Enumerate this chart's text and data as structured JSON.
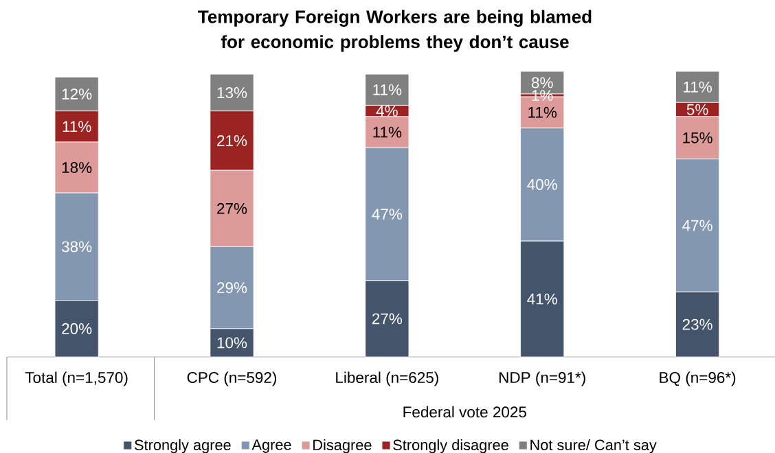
{
  "chart_data": {
    "type": "bar",
    "stacked": true,
    "title": "Temporary Foreign Workers are being blamed for economic problems they don’t cause",
    "categories": [
      "Total (n=1,570)",
      "CPC (n=592)",
      "Liberal (n=625)",
      "NDP (n=91*)",
      "BQ (n=96*)"
    ],
    "xlabel": "Federal vote 2025",
    "series": [
      {
        "name": "Strongly agree",
        "color": "#44546a",
        "values": [
          20,
          10,
          27,
          41,
          23
        ],
        "value_labels": [
          "20%",
          "10%",
          "27%",
          "41%",
          "23%"
        ]
      },
      {
        "name": "Agree",
        "color": "#8497b0",
        "values": [
          38,
          29,
          47,
          40,
          47
        ],
        "value_labels": [
          "38%",
          "29%",
          "47%",
          "40%",
          "47%"
        ]
      },
      {
        "name": "Disagree",
        "color": "#dc9a99",
        "values": [
          18,
          27,
          11,
          11,
          15
        ],
        "value_labels": [
          "18%",
          "27%",
          "11%",
          "11%",
          "15%"
        ]
      },
      {
        "name": "Strongly disagree",
        "color": "#9b2423",
        "values": [
          11,
          21,
          4,
          1,
          5
        ],
        "value_labels": [
          "11%",
          "21%",
          "4%",
          "1%",
          "5%"
        ]
      },
      {
        "name": "Not sure/ Can’t say",
        "color": "#808080",
        "values": [
          12,
          13,
          11,
          8,
          11
        ],
        "value_labels": [
          "12%",
          "13%",
          "11%",
          "8%",
          "11%"
        ]
      }
    ],
    "legend": "bottom"
  }
}
